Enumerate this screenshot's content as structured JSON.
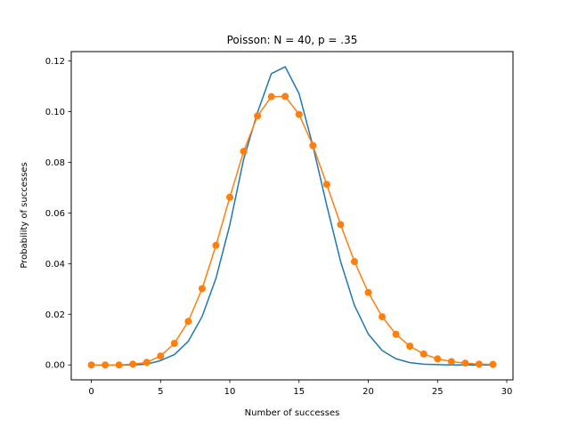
{
  "chart_data": {
    "type": "line",
    "title": "Poisson: N = 40, p = .35",
    "xlabel": "Number of successes",
    "ylabel": "Probability of successes",
    "xlim": [
      -1.45,
      30.45
    ],
    "ylim": [
      -0.0059,
      0.1237
    ],
    "xticks": [
      0,
      5,
      10,
      15,
      20,
      25,
      30
    ],
    "xtick_labels": [
      "0",
      "5",
      "10",
      "15",
      "20",
      "25",
      "30"
    ],
    "yticks": [
      0.0,
      0.02,
      0.04,
      0.06,
      0.08,
      0.1,
      0.12
    ],
    "ytick_labels": [
      "0.00",
      "0.02",
      "0.04",
      "0.06",
      "0.08",
      "0.10",
      "0.12"
    ],
    "grid": false,
    "legend": null,
    "x": [
      0,
      1,
      2,
      3,
      4,
      5,
      6,
      7,
      8,
      9,
      10,
      11,
      12,
      13,
      14,
      15,
      16,
      17,
      18,
      19,
      20,
      21,
      22,
      23,
      24,
      25,
      26,
      27,
      28,
      29
    ],
    "series": [
      {
        "color": "#1f77b4",
        "marker": "none",
        "values": [
          0.0,
          0.0,
          0.0,
          0.0,
          0.0003,
          0.0017,
          0.0041,
          0.0093,
          0.0191,
          0.0342,
          0.0553,
          0.0812,
          0.0997,
          0.115,
          0.1177,
          0.1071,
          0.0865,
          0.063,
          0.0408,
          0.0235,
          0.0122,
          0.0057,
          0.0024,
          0.0009,
          0.0003,
          0.0001,
          0.0,
          0.0,
          0.0,
          0.0
        ]
      },
      {
        "color": "#ff7f0e",
        "marker": "circle",
        "values": [
          0.0,
          0.0,
          0.0,
          0.0003,
          0.001,
          0.0035,
          0.0085,
          0.0172,
          0.0301,
          0.0472,
          0.0662,
          0.0843,
          0.0983,
          0.1059,
          0.106,
          0.0989,
          0.0866,
          0.0713,
          0.0554,
          0.0408,
          0.0286,
          0.019,
          0.0121,
          0.0074,
          0.0043,
          0.0024,
          0.0013,
          0.0007,
          0.0003,
          0.0002
        ]
      }
    ]
  }
}
